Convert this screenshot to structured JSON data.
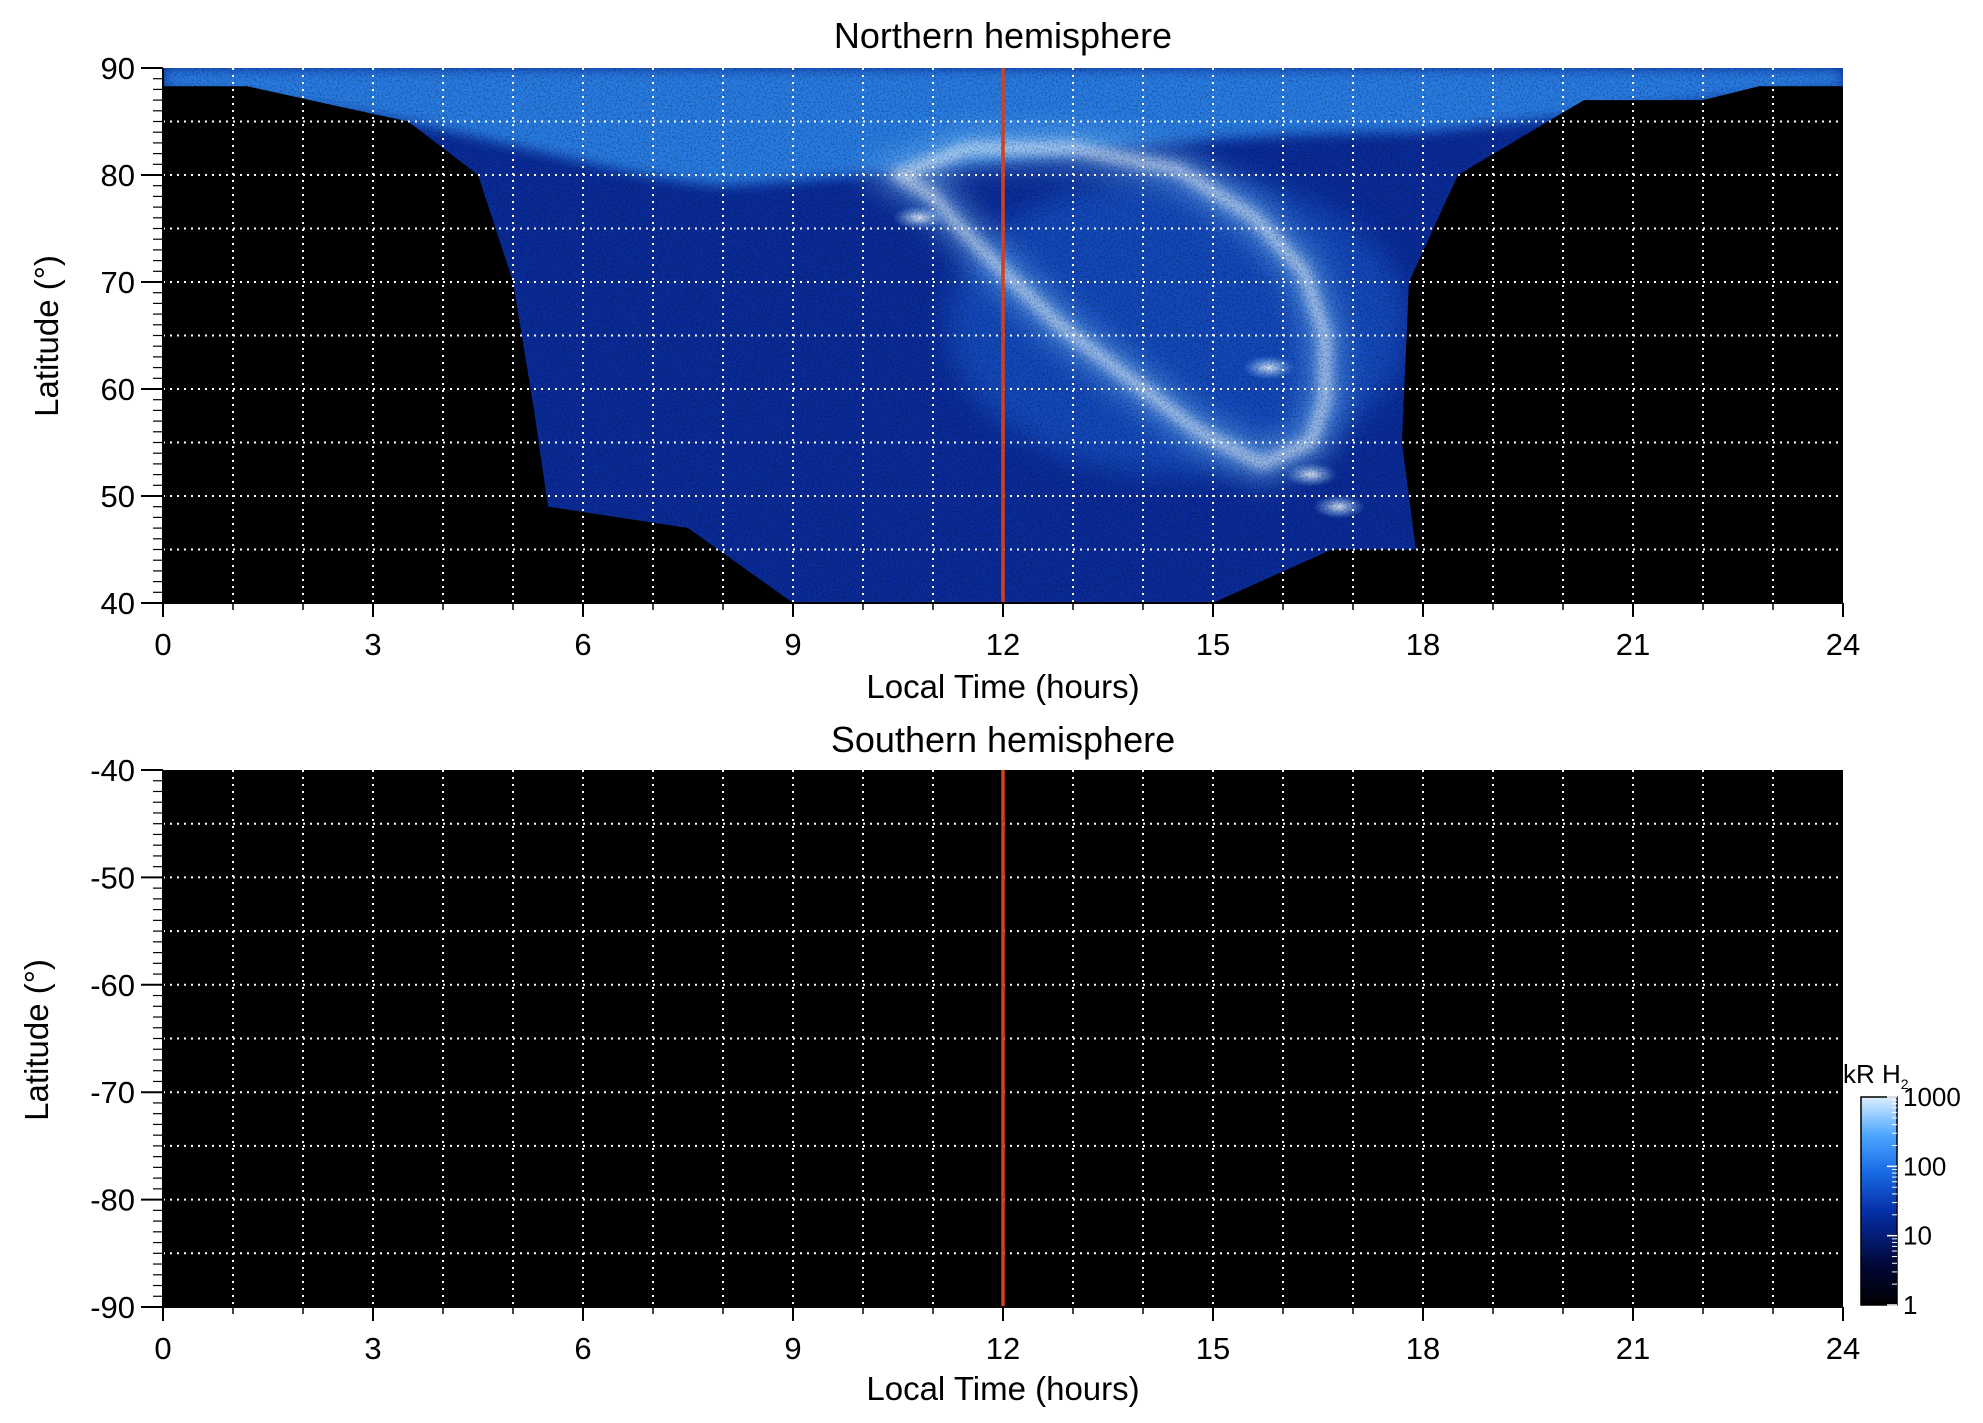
{
  "chart_data": [
    {
      "type": "heatmap",
      "title": "Northern hemisphere",
      "xlabel": "Local Time (hours)",
      "ylabel": "Latitude (°)",
      "xlim": [
        0,
        24
      ],
      "ylim": [
        40,
        90
      ],
      "xticks": [
        "0",
        "3",
        "6",
        "9",
        "12",
        "15",
        "18",
        "21",
        "24"
      ],
      "yticks": [
        "40",
        "50",
        "60",
        "70",
        "80",
        "90"
      ],
      "grid": true,
      "reference_line_x": 12,
      "reference_line_color": "#d04020",
      "background_color": "#000000",
      "features": {
        "coverage_boundary": [
          [
            2.1,
            87
          ],
          [
            3.5,
            85
          ],
          [
            4.5,
            80
          ],
          [
            5.0,
            70
          ],
          [
            5.3,
            58
          ],
          [
            5.5,
            49
          ],
          [
            7.5,
            47
          ],
          [
            9.0,
            40
          ],
          [
            15.0,
            40
          ],
          [
            16.7,
            45
          ],
          [
            17.9,
            45
          ],
          [
            17.7,
            55
          ],
          [
            17.8,
            70
          ],
          [
            18.5,
            80
          ],
          [
            20.3,
            87
          ],
          [
            22.0,
            87
          ]
        ],
        "main_oval": [
          [
            10.5,
            80
          ],
          [
            11.5,
            82.5
          ],
          [
            13.0,
            82.5
          ],
          [
            14.5,
            80.5
          ],
          [
            15.6,
            76
          ],
          [
            16.3,
            71
          ],
          [
            16.6,
            65
          ],
          [
            16.6,
            59
          ],
          [
            16.4,
            55
          ],
          [
            15.7,
            53
          ],
          [
            14.8,
            56
          ],
          [
            13.8,
            61
          ],
          [
            12.8,
            66
          ],
          [
            12.0,
            71
          ],
          [
            11.4,
            75
          ],
          [
            11.0,
            78
          ]
        ],
        "bright_spots": [
          [
            10.8,
            76
          ],
          [
            16.4,
            52
          ],
          [
            16.8,
            49
          ],
          [
            15.8,
            62
          ]
        ]
      }
    },
    {
      "type": "heatmap",
      "title": "Southern hemisphere",
      "xlabel": "Local Time (hours)",
      "ylabel": "Latitude (°)",
      "xlim": [
        0,
        24
      ],
      "ylim": [
        -90,
        -40
      ],
      "xticks": [
        "0",
        "3",
        "6",
        "9",
        "12",
        "15",
        "18",
        "21",
        "24"
      ],
      "yticks": [
        "-40",
        "-50",
        "-60",
        "-70",
        "-80",
        "-90"
      ],
      "grid": true,
      "reference_line_x": 12,
      "reference_line_color": "#d04020",
      "background_color": "#000000"
    }
  ],
  "colorbar": {
    "label": "kR H",
    "label_subscript": "2",
    "scale": "log",
    "range": [
      1,
      1000
    ],
    "ticks": [
      "1",
      "10",
      "100",
      "1000"
    ],
    "colors": [
      "#000000",
      "#02083a",
      "#0530a8",
      "#1a6ee8",
      "#4fa8ff",
      "#dcefff"
    ]
  }
}
